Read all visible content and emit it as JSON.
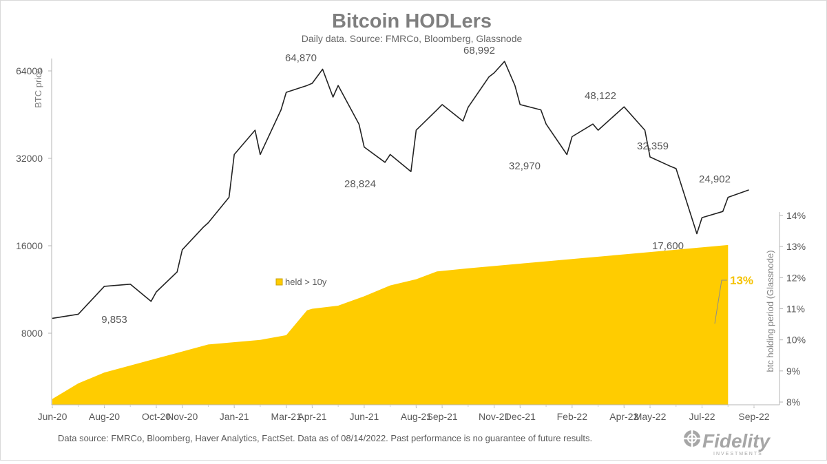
{
  "chart_data": {
    "type": "line",
    "title": "Bitcoin HODLers",
    "subtitle": "Daily data.  Source: FMRCo, Bloomberg, Glassnode",
    "x_tick_labels": [
      "Jun-20",
      "Aug-20",
      "Oct-20",
      "Nov-20",
      "Jan-21",
      "Mar-21",
      "Apr-21",
      "Jun-21",
      "Aug-21",
      "Sep-21",
      "Nov-21",
      "Dec-21",
      "Feb-22",
      "Apr-22",
      "May-22",
      "Jul-22",
      "Sep-22"
    ],
    "left_axis": {
      "label": "BTC price",
      "scale": "log",
      "ticks": [
        8000,
        16000,
        32000,
        64000
      ],
      "tick_labels": [
        "8000",
        "16000",
        "32000",
        "64000"
      ],
      "range": [
        6000,
        80000
      ]
    },
    "right_axis": {
      "label": "btc holding period (Glassnode)",
      "ticks": [
        8,
        9,
        10,
        11,
        12,
        13,
        14
      ],
      "tick_labels": [
        "8%",
        "9%",
        "10%",
        "11%",
        "12%",
        "13%",
        "14%"
      ],
      "range": [
        8,
        14.5
      ]
    },
    "series": [
      {
        "name": "",
        "axis": "left",
        "color": "#222222",
        "points": [
          [
            "Jun-20",
            9000
          ],
          [
            "Jul-20",
            9300
          ],
          [
            "Aug-20",
            11600
          ],
          [
            "Sep-20",
            11800
          ],
          [
            "Sep-20",
            10300
          ],
          [
            "Oct-20",
            11100
          ],
          [
            "Oct-20",
            13000
          ],
          [
            "Nov-20",
            15500
          ],
          [
            "Nov-20",
            18500
          ],
          [
            "Dec-20",
            19200
          ],
          [
            "Dec-20",
            23500
          ],
          [
            "Jan-21",
            33000
          ],
          [
            "Jan-21",
            40000
          ],
          [
            "Feb-21",
            33000
          ],
          [
            "Feb-21",
            47000
          ],
          [
            "Mar-21",
            54000
          ],
          [
            "Mar-21",
            57000
          ],
          [
            "Apr-21",
            58000
          ],
          [
            "Apr-21",
            64870
          ],
          [
            "Apr-21",
            52000
          ],
          [
            "May-21",
            57000
          ],
          [
            "May-21",
            42000
          ],
          [
            "Jun-21",
            35000
          ],
          [
            "Jun-21",
            31000
          ],
          [
            "Jul-21",
            33000
          ],
          [
            "Jul-21",
            28824
          ],
          [
            "Aug-21",
            40000
          ],
          [
            "Aug-21",
            47000
          ],
          [
            "Sep-21",
            49000
          ],
          [
            "Sep-21",
            43000
          ],
          [
            "Oct-21",
            48000
          ],
          [
            "Oct-21",
            61000
          ],
          [
            "Nov-21",
            63000
          ],
          [
            "Nov-21",
            68992
          ],
          [
            "Nov-21",
            57000
          ],
          [
            "Dec-21",
            49000
          ],
          [
            "Dec-21",
            47000
          ],
          [
            "Jan-22",
            42000
          ],
          [
            "Jan-22",
            32970
          ],
          [
            "Feb-22",
            38000
          ],
          [
            "Feb-22",
            42000
          ],
          [
            "Mar-22",
            40000
          ],
          [
            "Apr-22",
            48122
          ],
          [
            "Apr-22",
            40000
          ],
          [
            "May-22",
            32359
          ],
          [
            "May-22",
            30000
          ],
          [
            "Jun-22",
            29500
          ],
          [
            "Jun-22",
            17600
          ],
          [
            "Jul-22",
            20000
          ],
          [
            "Jul-22",
            21000
          ],
          [
            "Aug-22",
            23500
          ],
          [
            "Aug-22",
            24902
          ]
        ]
      },
      {
        "name": "held > 10y",
        "axis": "right",
        "type": "area",
        "color": "#FFCC00",
        "points": [
          [
            "Jun-20",
            8.1
          ],
          [
            "Jul-20",
            8.6
          ],
          [
            "Aug-20",
            8.95
          ],
          [
            "Oct-20",
            9.4
          ],
          [
            "Dec-20",
            9.85
          ],
          [
            "Feb-21",
            10.0
          ],
          [
            "Mar-21",
            10.15
          ],
          [
            "Mar-21",
            10.95
          ],
          [
            "Apr-21",
            11.0
          ],
          [
            "May-21",
            11.1
          ],
          [
            "Jun-21",
            11.4
          ],
          [
            "Jul-21",
            11.75
          ],
          [
            "Aug-21",
            11.95
          ],
          [
            "Aug-21",
            12.2
          ],
          [
            "Oct-21",
            12.3
          ],
          [
            "Dec-21",
            12.45
          ],
          [
            "Feb-22",
            12.6
          ],
          [
            "Apr-22",
            12.75
          ],
          [
            "Jun-22",
            12.9
          ],
          [
            "Aug-22",
            13.05
          ]
        ]
      }
    ],
    "annotations": [
      "64,870",
      "68,992",
      "48,122",
      "32,359",
      "24,902",
      "9,853",
      "28,824",
      "32,970",
      "17,600"
    ],
    "callout": "13%",
    "legend_position": "center",
    "grid": false,
    "colors": {
      "price_line": "#222222",
      "area": "#FFCC00",
      "callout": "#F5C200",
      "axis": "#b4b4b4",
      "title": "#7f7f7f"
    }
  },
  "footer": {
    "note": "Data source: FMRCo, Bloomberg, Haver Analytics, FactSet. Data as of 08/14/2022. Past performance is no guarantee of future results.",
    "brand": "Fidelity",
    "brand_sub": "INVESTMENTS"
  }
}
